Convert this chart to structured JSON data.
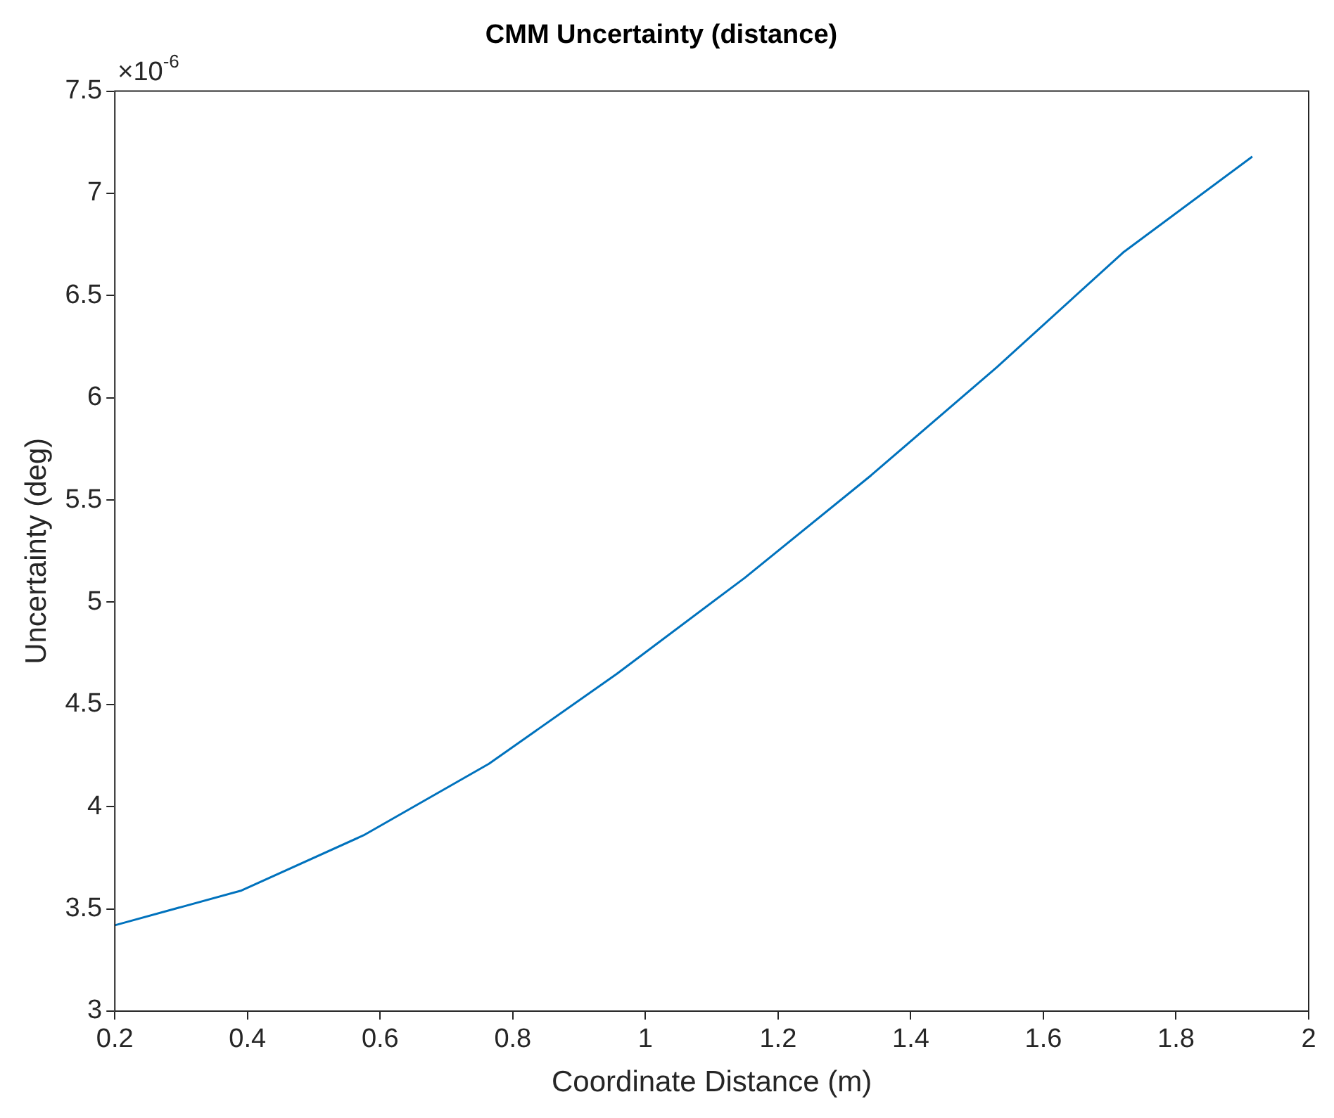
{
  "chart_data": {
    "type": "line",
    "title": "CMM Uncertainty (distance)",
    "xlabel": "Coordinate Distance (m)",
    "ylabel": "Uncertainty (deg)",
    "annotations": [
      "×10$^{-6}$"
    ],
    "x": [
      0.2,
      0.391,
      0.575,
      0.764,
      0.957,
      1.15,
      1.34,
      1.53,
      1.72,
      1.915
    ],
    "series": [
      {
        "color": "#0072bd",
        "values": [
          3.42,
          3.59,
          3.86,
          4.21,
          4.65,
          5.12,
          5.62,
          6.15,
          6.71,
          7.18
        ]
      }
    ],
    "xlim": [
      0.2,
      2
    ],
    "xticks": [
      0.2,
      0.4,
      0.6,
      0.8,
      1,
      1.2,
      1.4,
      1.6,
      1.8,
      2
    ],
    "ylim": [
      3,
      7.5
    ],
    "yticks": [
      3,
      3.5,
      4,
      4.5,
      5,
      5.5,
      6,
      6.5,
      7,
      7.5
    ],
    "grid": false,
    "legend": false,
    "marker": "none",
    "line_style": "solid"
  }
}
